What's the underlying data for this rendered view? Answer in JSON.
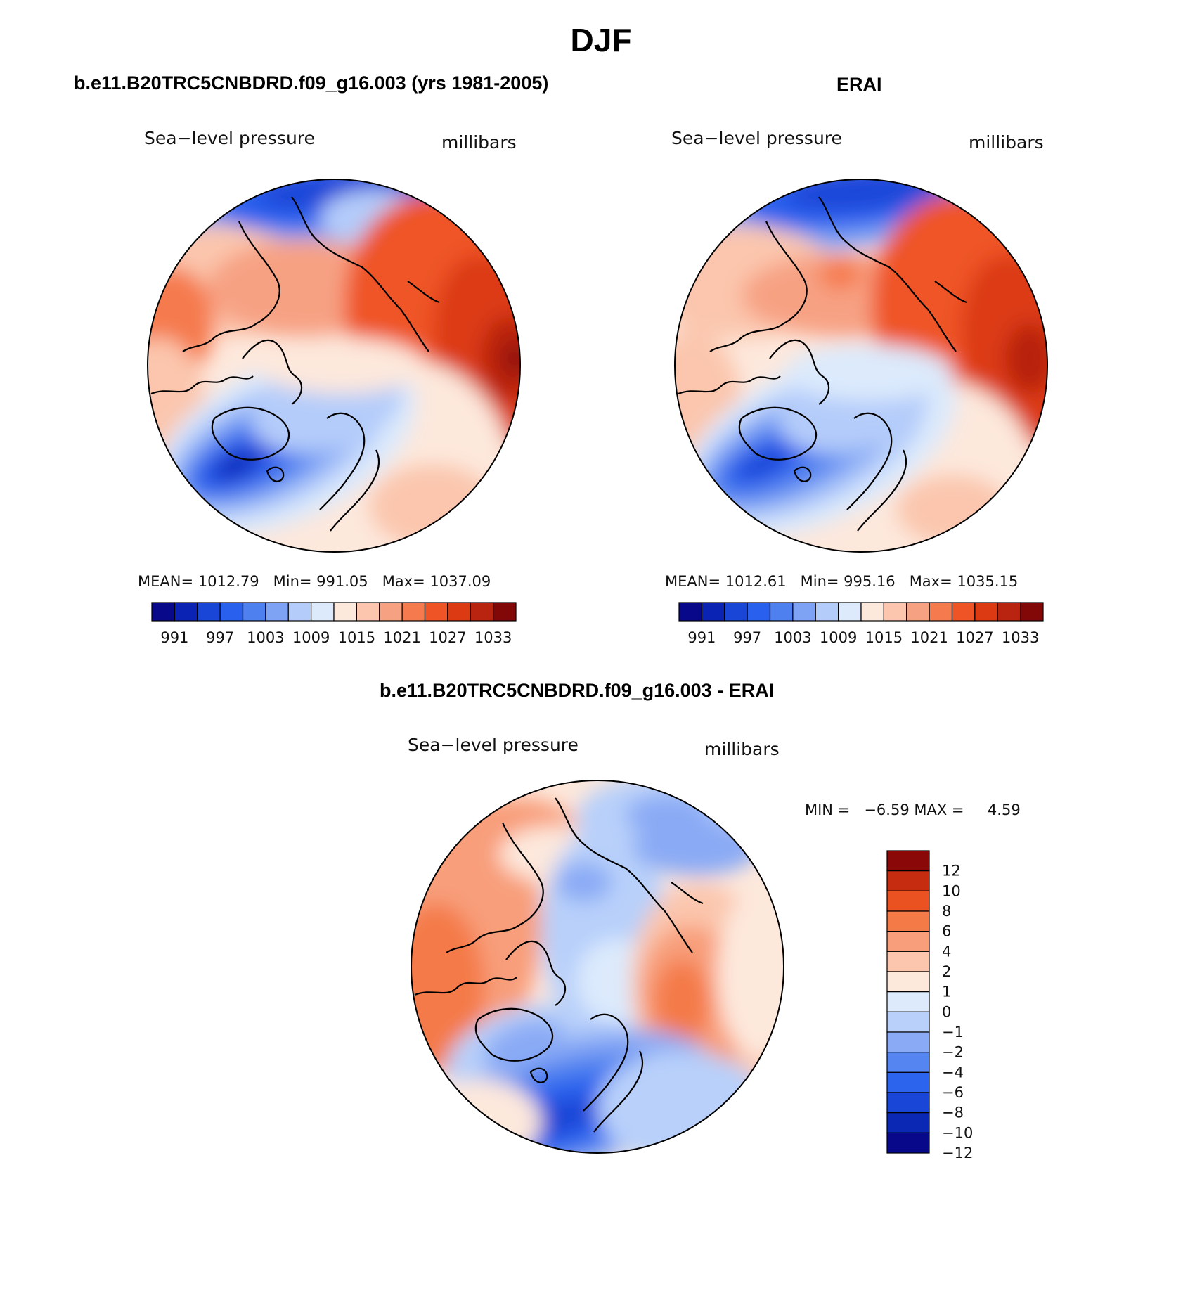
{
  "page_title": "DJF",
  "colors": {
    "scale_two_sided": [
      "#08088a",
      "#0a23b4",
      "#1a46d8",
      "#2a60ee",
      "#4f80ef",
      "#7ea2f4",
      "#b4ccfa",
      "#dceafc",
      "#fde8dc",
      "#fbc6ad",
      "#f7a183",
      "#f57a4e",
      "#ef5426",
      "#dc3a12",
      "#b82410",
      "#820808"
    ],
    "scale_diff": [
      "#08088a",
      "#0a28b4",
      "#1a46d8",
      "#2c64ee",
      "#5485f0",
      "#8aaaf5",
      "#b8d0fa",
      "#dceafc",
      "#fde8dc",
      "#fbc6ad",
      "#f89e7a",
      "#f47a48",
      "#ea5222",
      "#c62c10",
      "#8a0808"
    ],
    "coastline": "#000000"
  },
  "panels": [
    {
      "heading": "b.e11.B20TRC5CNBDRD.f09_g16.003 (yrs 1981-2005)",
      "variable": "Sea−level pressure",
      "units": "millibars",
      "stats": {
        "mean_label": "MEAN=",
        "mean": "1012.79",
        "min_label": "Min=",
        "min": "991.05",
        "max_label": "Max=",
        "max": "1037.09"
      },
      "colorbar_labels": [
        "991",
        "997",
        "1003",
        "1009",
        "1015",
        "1021",
        "1027",
        "1033"
      ]
    },
    {
      "heading": "ERAI",
      "variable": "Sea−level pressure",
      "units": "millibars",
      "stats": {
        "mean_label": "MEAN=",
        "mean": "1012.61",
        "min_label": "Min=",
        "min": "995.16",
        "max_label": "Max=",
        "max": "1035.15"
      },
      "colorbar_labels": [
        "991",
        "997",
        "1003",
        "1009",
        "1015",
        "1021",
        "1027",
        "1033"
      ]
    },
    {
      "heading": "b.e11.B20TRC5CNBDRD.f09_g16.003 - ERAI",
      "variable": "Sea−level pressure",
      "units": "millibars",
      "stats": {
        "min_label": "MIN =",
        "min": "−6.59",
        "max_label": "MAX =",
        "max": "4.59"
      },
      "colorbar_labels": [
        "12",
        "10",
        "8",
        "6",
        "4",
        "2",
        "1",
        "0",
        "−1",
        "−2",
        "−4",
        "−6",
        "−8",
        "−10",
        "−12"
      ]
    }
  ]
}
